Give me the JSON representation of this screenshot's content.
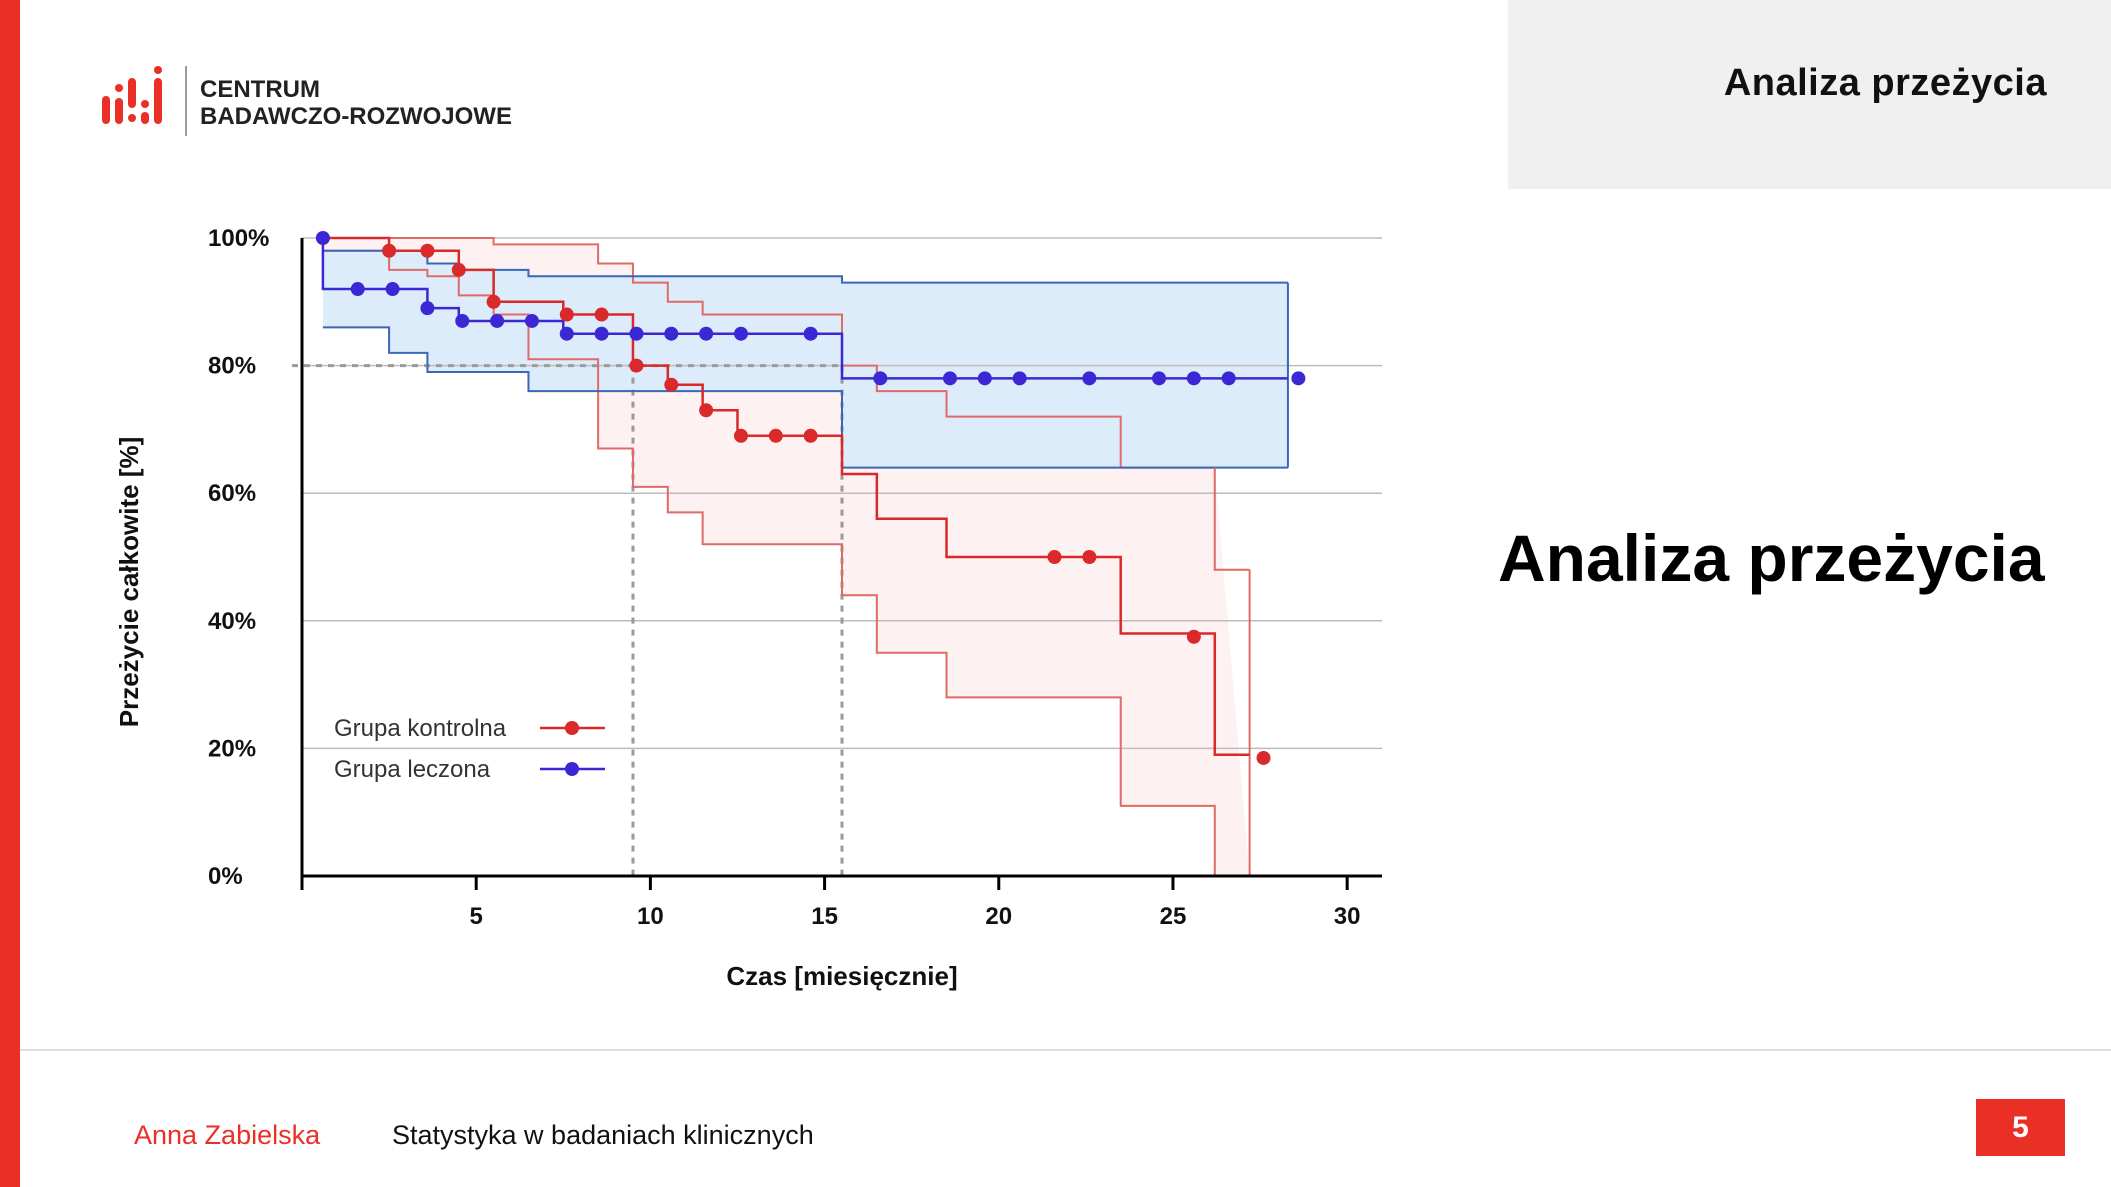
{
  "header": {
    "title": "Analiza  przeżycia"
  },
  "logo": {
    "line1": "CENTRUM",
    "line2": "BADAWCZO-ROZWOJOWE"
  },
  "slide": {
    "title": "Analiza przeżycia",
    "page_number": "5"
  },
  "footer": {
    "author": "Anna Zabielska",
    "course": "Statystyka w badaniach klinicznych"
  },
  "colors": {
    "accent": "#ea2f26",
    "control": "#d9292a",
    "treated": "#3b28d4",
    "treated_band": "#dcecfb",
    "control_band": "#fdf2f1"
  },
  "chart_data": {
    "type": "line",
    "subtype": "kaplan-meier step curves with confidence bands",
    "xlabel": "Czas [miesięcznie]",
    "ylabel": "Przeżycie całkowite [%]",
    "xlim": [
      0,
      31
    ],
    "ylim": [
      0,
      100
    ],
    "xticks": [
      5,
      10,
      15,
      20,
      25,
      30
    ],
    "yticks": [
      0,
      20,
      40,
      60,
      80,
      100
    ],
    "ytick_labels": [
      "0%",
      "20%",
      "40%",
      "60%",
      "80%",
      "100%"
    ],
    "grid": "horizontal",
    "legend_position": "bottom-left",
    "reference_lines": {
      "y": 80,
      "x": [
        9.5,
        15.5
      ],
      "style": "dashed"
    },
    "series": [
      {
        "name": "Grupa kontrolna",
        "color": "#d9292a",
        "curve": [
          [
            0.6,
            100
          ],
          [
            2.5,
            98
          ],
          [
            3.6,
            98
          ],
          [
            4.5,
            95
          ],
          [
            5.5,
            90
          ],
          [
            7.5,
            88
          ],
          [
            9.5,
            80
          ],
          [
            10.5,
            77
          ],
          [
            11.5,
            73
          ],
          [
            12.5,
            69
          ],
          [
            15.5,
            63
          ],
          [
            16.5,
            56
          ],
          [
            18.5,
            50
          ],
          [
            23.5,
            38
          ],
          [
            26.2,
            19
          ],
          [
            27.2,
            19
          ]
        ],
        "censored": [
          [
            2.5,
            98
          ],
          [
            3.6,
            98
          ],
          [
            4.5,
            95
          ],
          [
            5.5,
            90
          ],
          [
            7.6,
            88
          ],
          [
            8.6,
            88
          ],
          [
            9.6,
            80
          ],
          [
            10.6,
            77
          ],
          [
            11.6,
            73
          ],
          [
            12.6,
            69
          ],
          [
            13.6,
            69
          ],
          [
            14.6,
            69
          ],
          [
            21.6,
            50
          ],
          [
            22.6,
            50
          ],
          [
            25.6,
            37.5
          ],
          [
            27.6,
            18.5
          ]
        ],
        "upper_ci": [
          [
            0.6,
            100
          ],
          [
            4.5,
            100
          ],
          [
            5.5,
            99
          ],
          [
            8.5,
            98
          ],
          [
            8.5,
            96
          ],
          [
            9.5,
            93
          ],
          [
            10.5,
            90
          ],
          [
            11.5,
            88
          ],
          [
            15.5,
            85
          ],
          [
            15.5,
            80
          ],
          [
            16.5,
            76
          ],
          [
            18.5,
            72
          ],
          [
            23.5,
            64
          ],
          [
            26.2,
            64
          ],
          [
            26.2,
            64
          ]
        ],
        "lower_ci": [
          [
            0.6,
            98
          ],
          [
            2.5,
            95
          ],
          [
            3.6,
            94
          ],
          [
            4.5,
            91
          ],
          [
            5.5,
            88
          ],
          [
            6.5,
            81
          ],
          [
            8.5,
            79
          ],
          [
            8.5,
            67
          ],
          [
            9.5,
            61
          ],
          [
            10.5,
            57
          ],
          [
            11.5,
            52
          ],
          [
            15.5,
            44
          ],
          [
            16.5,
            35
          ],
          [
            18.5,
            28
          ],
          [
            23.5,
            11
          ],
          [
            26.2,
            0
          ],
          [
            27.2,
            0
          ]
        ]
      },
      {
        "name": "Grupa leczona",
        "color": "#3b28d4",
        "curve": [
          [
            0.6,
            100
          ],
          [
            0.6,
            92
          ],
          [
            2.5,
            92
          ],
          [
            3.6,
            89
          ],
          [
            4.5,
            87
          ],
          [
            6.5,
            87
          ],
          [
            7.5,
            85
          ],
          [
            15.5,
            85
          ],
          [
            15.5,
            78
          ],
          [
            28.3,
            78
          ]
        ],
        "censored": [
          [
            0.6,
            100
          ],
          [
            1.6,
            92
          ],
          [
            2.6,
            92
          ],
          [
            3.6,
            89
          ],
          [
            4.6,
            87
          ],
          [
            5.6,
            87
          ],
          [
            6.6,
            87
          ],
          [
            7.6,
            85
          ],
          [
            8.6,
            85
          ],
          [
            9.6,
            85
          ],
          [
            10.6,
            85
          ],
          [
            11.6,
            85
          ],
          [
            12.6,
            85
          ],
          [
            14.6,
            85
          ],
          [
            16.6,
            78
          ],
          [
            18.6,
            78
          ],
          [
            19.6,
            78
          ],
          [
            20.6,
            78
          ],
          [
            22.6,
            78
          ],
          [
            24.6,
            78
          ],
          [
            25.6,
            78
          ],
          [
            26.6,
            78
          ],
          [
            28.6,
            78
          ]
        ],
        "upper_ci": [
          [
            0.6,
            98
          ],
          [
            2.5,
            98
          ],
          [
            3.6,
            96
          ],
          [
            4.5,
            95
          ],
          [
            6.5,
            94
          ],
          [
            15.5,
            94
          ],
          [
            15.5,
            93
          ],
          [
            28.3,
            93
          ]
        ],
        "lower_ci": [
          [
            0.6,
            86
          ],
          [
            2.5,
            86
          ],
          [
            2.5,
            82
          ],
          [
            3.6,
            82
          ],
          [
            3.6,
            79
          ],
          [
            6.5,
            79
          ],
          [
            6.5,
            76
          ],
          [
            15.5,
            76
          ],
          [
            15.5,
            64
          ],
          [
            28.3,
            64
          ]
        ]
      }
    ]
  }
}
